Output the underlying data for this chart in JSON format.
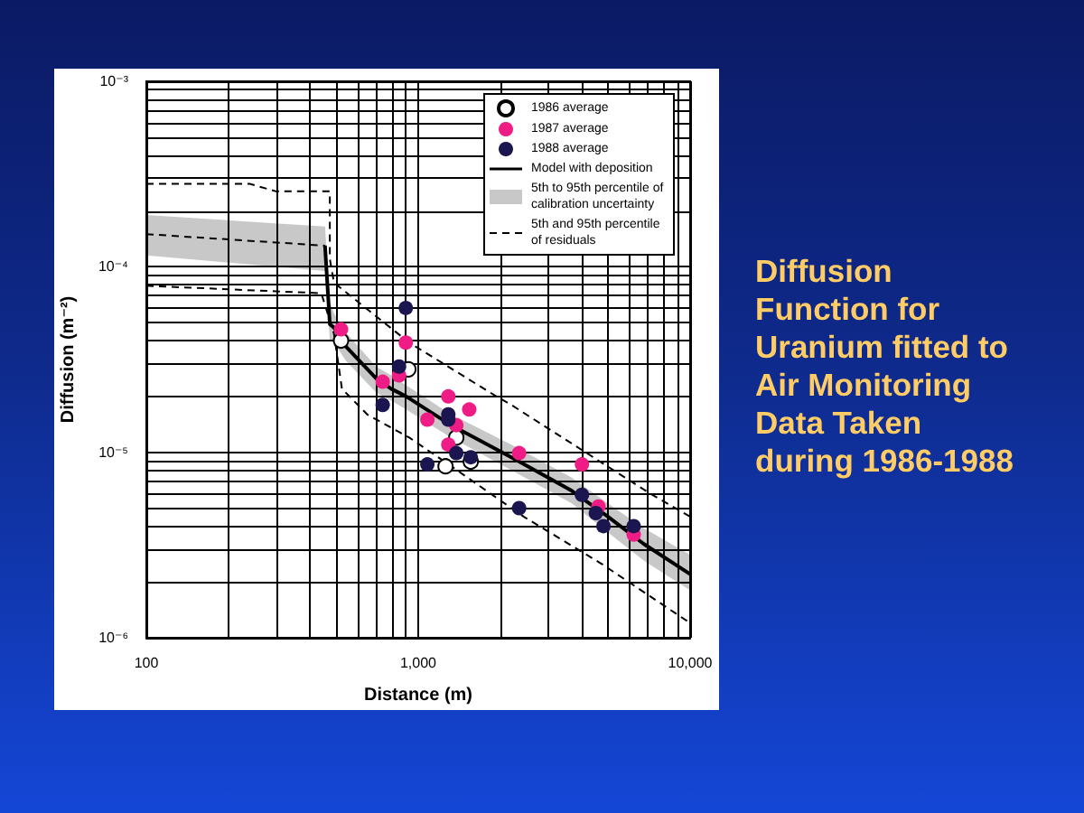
{
  "chart_data": {
    "type": "scatter",
    "title": "Diffusion Function for Uranium fitted to Air Monitoring Data Taken during 1986-1988",
    "xlabel": "Distance (m)",
    "ylabel": "Diffusion (m⁻²)",
    "log": "xy",
    "grid": true,
    "legend": "top right",
    "marker": "circle",
    "xlim": [
      100,
      10000
    ],
    "xticks": [
      100,
      {
        "value": 200,
        "label": null
      },
      {
        "value": 300,
        "label": null
      },
      {
        "value": 400,
        "label": null
      },
      {
        "value": 500,
        "label": null
      },
      {
        "value": 600,
        "label": null
      },
      {
        "value": 700,
        "label": null
      },
      {
        "value": 800,
        "label": null
      },
      {
        "value": 900,
        "label": null
      },
      {
        "value": 1000,
        "label": "1,000"
      },
      {
        "value": 2000,
        "label": null
      },
      {
        "value": 3000,
        "label": null
      },
      {
        "value": 4000,
        "label": null
      },
      {
        "value": 5000,
        "label": null
      },
      {
        "value": 6000,
        "label": null
      },
      {
        "value": 7000,
        "label": null
      },
      {
        "value": 8000,
        "label": null
      },
      {
        "value": 9000,
        "label": null
      },
      {
        "value": 10000,
        "label": "10,000"
      }
    ],
    "ylim": [
      1e-06,
      0.001
    ],
    "yticks": [
      {
        "value": 1e-06,
        "label": "10⁻⁶"
      },
      {
        "value": 2e-06,
        "label": null
      },
      {
        "value": 3e-06,
        "label": null
      },
      {
        "value": 4e-06,
        "label": null
      },
      {
        "value": 5e-06,
        "label": null
      },
      {
        "value": 6e-06,
        "label": null
      },
      {
        "value": 7e-06,
        "label": null
      },
      {
        "value": 8e-06,
        "label": null
      },
      {
        "value": 9e-06,
        "label": null
      },
      {
        "value": 1e-05,
        "label": "10⁻⁵"
      },
      {
        "value": 2e-05,
        "label": null
      },
      {
        "value": 3e-05,
        "label": null
      },
      {
        "value": 4e-05,
        "label": null
      },
      {
        "value": 5e-05,
        "label": null
      },
      {
        "value": 6e-05,
        "label": null
      },
      {
        "value": 7e-05,
        "label": null
      },
      {
        "value": 8e-05,
        "label": null
      },
      {
        "value": 9e-05,
        "label": null
      },
      {
        "value": 0.0001,
        "label": "10⁻⁴"
      },
      {
        "value": 0.0002,
        "label": null
      },
      {
        "value": 0.0003,
        "label": null
      },
      {
        "value": 0.0004,
        "label": null
      },
      {
        "value": 0.0005,
        "label": null
      },
      {
        "value": 0.0006,
        "label": null
      },
      {
        "value": 0.0007,
        "label": null
      },
      {
        "value": 0.0008,
        "label": null
      },
      {
        "value": 0.0009,
        "label": null
      },
      {
        "value": 0.001,
        "label": "10⁻³"
      }
    ],
    "series": [
      {
        "name": "1986 average",
        "color": "#ffffff",
        "x": [
          520,
          920,
          1380,
          1260,
          1560
        ],
        "values": [
          4e-05,
          2.8e-05,
          1.2e-05,
          8.4e-06,
          8.9e-06
        ]
      },
      {
        "name": "1987 average",
        "color": "#ee1c84",
        "x": [
          520,
          900,
          740,
          850,
          1290,
          1540,
          1080,
          1380,
          1290,
          2350,
          4000,
          4600,
          6200
        ],
        "values": [
          4.6e-05,
          3.9e-05,
          2.4e-05,
          2.6e-05,
          2e-05,
          1.7e-05,
          1.5e-05,
          1.4e-05,
          1.1e-05,
          9.9e-06,
          8.6e-06,
          5.1e-06,
          3.6e-06
        ]
      },
      {
        "name": "1988 average",
        "color": "#1c1650",
        "x": [
          900,
          850,
          740,
          1290,
          1290,
          1080,
          1380,
          1560,
          2350,
          4000,
          4500,
          4800,
          6200
        ],
        "values": [
          6e-05,
          2.9e-05,
          1.8e-05,
          1.6e-05,
          1.5e-05,
          8.6e-06,
          9.9e-06,
          9.4e-06,
          5e-06,
          5.9e-06,
          4.7e-06,
          4e-06,
          4e-06
        ]
      },
      {
        "name": "Model with deposition",
        "type": "line",
        "marker": "none",
        "line_style": "solid",
        "color": "#000000",
        "x": [
          454,
          473,
          490,
          543,
          700,
          795,
          903,
          1320,
          2200,
          3670,
          4980,
          6760,
          10000
        ],
        "values": [
          0.00013,
          4.9e-05,
          4.7e-05,
          3.7e-05,
          2.5e-05,
          2.2e-05,
          2e-05,
          1.4e-05,
          9.4e-06,
          6.2e-06,
          4.5e-06,
          3.2e-06,
          2.2e-06
        ]
      },
      {
        "name": "5th to 95th percentile of calibration uncertainty",
        "type": "area",
        "color": "#c8c8c8",
        "x": [
          100,
          454,
          473,
          490,
          543,
          700,
          795,
          903,
          1320,
          2200,
          3670,
          4980,
          6760,
          10000
        ],
        "values": [
          null,
          null,
          null,
          null,
          null,
          null,
          null,
          null,
          null,
          null,
          null,
          null,
          null,
          null
        ],
        "upper": [
          0.00019,
          0.000165,
          6.5e-05,
          5.6e-05,
          4.4e-05,
          2.9e-05,
          2.6e-05,
          2.3e-05,
          1.6e-05,
          1.1e-05,
          7.3e-06,
          5.3e-06,
          3.9e-06,
          2.8e-06
        ],
        "lower": [
          0.000115,
          9.5e-05,
          4e-05,
          3.9e-05,
          3.1e-05,
          2.1e-05,
          1.9e-05,
          1.7e-05,
          1.2e-05,
          8e-06,
          5.3e-06,
          3.7e-06,
          2.6e-06,
          1.8e-06
        ]
      },
      {
        "name": "5th and 95th percentile of residuals",
        "type": "line",
        "marker": "none",
        "line_style": "dashed",
        "color": "#000000",
        "x": [
          100,
          240,
          300,
          473,
          473,
          490,
          927,
          1940,
          2200,
          7110,
          10000
        ],
        "values": [
          0.00028,
          0.00028,
          0.000255,
          0.000255,
          0.00011,
          8.2e-05,
          3.9e-05,
          2e-05,
          1.8e-05,
          6e-06,
          4.5e-06
        ]
      },
      {
        "type": "line",
        "marker": "none",
        "line_style": "dashed",
        "color": "#000000",
        "x": [
          100,
          440,
          490,
          524,
          649,
          927,
          1324,
          2440,
          4730,
          10000
        ],
        "values": [
          7.9e-05,
          7.2e-05,
          4.35e-05,
          2.2e-05,
          1.6e-05,
          1.2e-05,
          8.4e-06,
          4.5e-06,
          2.5e-06,
          1.2e-06
        ]
      },
      {
        "type": "line",
        "marker": "none",
        "line_style": "dashed",
        "color": "#000000",
        "x": [
          100,
          454
        ],
        "values": [
          0.00015,
          0.00013
        ]
      }
    ]
  }
}
